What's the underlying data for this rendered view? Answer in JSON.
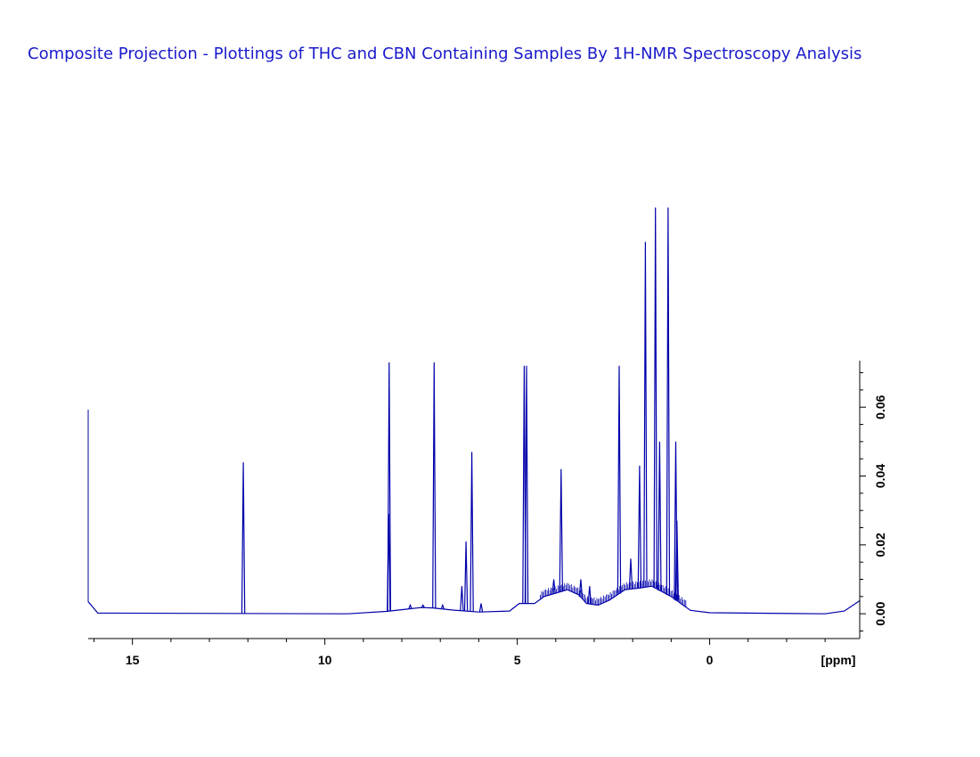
{
  "title": "Composite Projection - Plottings of THC and CBN Containing Samples By 1H-NMR Spectroscopy Analysis",
  "colors": {
    "title": "#1a1acc",
    "spectrum": "#0000aa",
    "axis": "#000000"
  },
  "chart_data": {
    "type": "line",
    "title": "Composite Projection - Plottings of THC and CBN Containing Samples By 1H-NMR Spectroscopy Analysis",
    "xlabel": "[ppm]",
    "ylabel": "",
    "x_reversed": true,
    "xlim": [
      16.15,
      -3.9
    ],
    "ylim": [
      -0.0072,
      0.0735
    ],
    "x_ticks": [
      15,
      10,
      5,
      0
    ],
    "x_tick_labels": [
      "15",
      "10",
      "5",
      "0"
    ],
    "y_ticks": [
      0.0,
      0.02,
      0.04,
      0.06
    ],
    "y_tick_labels": [
      "0.00",
      "0.02",
      "0.04",
      "0.06"
    ],
    "y_axis_side": "right",
    "grid": false,
    "legend": "none",
    "series": [
      {
        "peaks": [
          {
            "ppm": 12.12,
            "height": 0.044
          },
          {
            "ppm": 8.33,
            "height": 0.073
          },
          {
            "ppm": 8.34,
            "height": 0.029
          },
          {
            "ppm": 7.78,
            "height": 0.0025
          },
          {
            "ppm": 7.45,
            "height": 0.0025
          },
          {
            "ppm": 7.16,
            "height": 0.073
          },
          {
            "ppm": 6.94,
            "height": 0.0025
          },
          {
            "ppm": 6.44,
            "height": 0.008
          },
          {
            "ppm": 6.33,
            "height": 0.021
          },
          {
            "ppm": 6.18,
            "height": 0.047
          },
          {
            "ppm": 5.94,
            "height": 0.003
          },
          {
            "ppm": 4.82,
            "height": 0.072
          },
          {
            "ppm": 4.76,
            "height": 0.072
          },
          {
            "ppm": 4.05,
            "height": 0.01
          },
          {
            "ppm": 3.86,
            "height": 0.042
          },
          {
            "ppm": 3.35,
            "height": 0.01
          },
          {
            "ppm": 3.12,
            "height": 0.008
          },
          {
            "ppm": 2.35,
            "height": 0.072
          },
          {
            "ppm": 2.05,
            "height": 0.016
          },
          {
            "ppm": 1.82,
            "height": 0.043
          },
          {
            "ppm": 1.67,
            "height": 0.108
          },
          {
            "ppm": 1.41,
            "height": 0.118
          },
          {
            "ppm": 1.3,
            "height": 0.05
          },
          {
            "ppm": 1.08,
            "height": 0.118
          },
          {
            "ppm": 0.88,
            "height": 0.05
          },
          {
            "ppm": 0.85,
            "height": 0.027
          }
        ],
        "baseline": [
          {
            "ppm": 16.15,
            "y": 0.0035
          },
          {
            "ppm": 15.9,
            "y": 0.0002
          },
          {
            "ppm": 9.4,
            "y": 0.0
          },
          {
            "ppm": 8.4,
            "y": 0.0007
          },
          {
            "ppm": 7.9,
            "y": 0.0013
          },
          {
            "ppm": 7.5,
            "y": 0.0018
          },
          {
            "ppm": 7.2,
            "y": 0.0017
          },
          {
            "ppm": 6.7,
            "y": 0.0011
          },
          {
            "ppm": 6.0,
            "y": 0.0005
          },
          {
            "ppm": 5.2,
            "y": 0.0008
          },
          {
            "ppm": 4.95,
            "y": 0.003
          },
          {
            "ppm": 4.55,
            "y": 0.003
          },
          {
            "ppm": 4.3,
            "y": 0.005
          },
          {
            "ppm": 4.0,
            "y": 0.006
          },
          {
            "ppm": 3.7,
            "y": 0.007
          },
          {
            "ppm": 3.4,
            "y": 0.0055
          },
          {
            "ppm": 3.2,
            "y": 0.003
          },
          {
            "ppm": 2.9,
            "y": 0.0025
          },
          {
            "ppm": 2.6,
            "y": 0.004
          },
          {
            "ppm": 2.2,
            "y": 0.007
          },
          {
            "ppm": 1.8,
            "y": 0.0075
          },
          {
            "ppm": 1.5,
            "y": 0.008
          },
          {
            "ppm": 1.0,
            "y": 0.005
          },
          {
            "ppm": 0.5,
            "y": 0.001
          },
          {
            "ppm": 0.0,
            "y": 0.0003
          },
          {
            "ppm": -3.0,
            "y": 0.0
          },
          {
            "ppm": -3.5,
            "y": 0.0008
          },
          {
            "ppm": -3.9,
            "y": 0.0038
          }
        ]
      }
    ]
  }
}
